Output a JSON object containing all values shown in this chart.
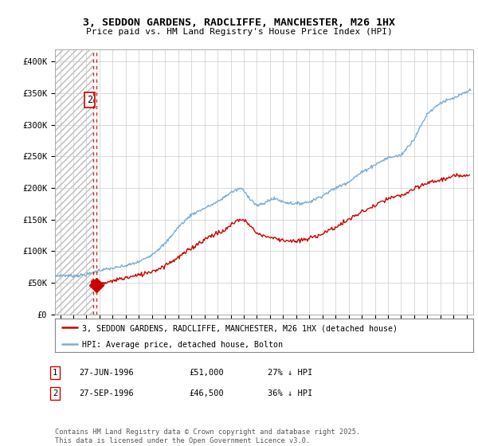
{
  "title": "3, SEDDON GARDENS, RADCLIFFE, MANCHESTER, M26 1HX",
  "subtitle": "Price paid vs. HM Land Registry's House Price Index (HPI)",
  "ylim": [
    0,
    420000
  ],
  "yticks": [
    0,
    50000,
    100000,
    150000,
    200000,
    250000,
    300000,
    350000,
    400000
  ],
  "ytick_labels": [
    "£0",
    "£50K",
    "£100K",
    "£150K",
    "£200K",
    "£250K",
    "£300K",
    "£350K",
    "£400K"
  ],
  "xlim_start": 1993.6,
  "xlim_end": 2025.5,
  "hpi_color": "#7aadd4",
  "price_color": "#cc0000",
  "marker1_date": 1996.49,
  "marker1_price": 51000,
  "marker2_date": 1996.74,
  "marker2_price": 46500,
  "legend_line1": "3, SEDDON GARDENS, RADCLIFFE, MANCHESTER, M26 1HX (detached house)",
  "legend_line2": "HPI: Average price, detached house, Bolton",
  "table_row1": [
    "1",
    "27-JUN-1996",
    "£51,000",
    "27% ↓ HPI"
  ],
  "table_row2": [
    "2",
    "27-SEP-1996",
    "£46,500",
    "36% ↓ HPI"
  ],
  "footer": "Contains HM Land Registry data © Crown copyright and database right 2025.\nThis data is licensed under the Open Government Licence v3.0.",
  "bg_color": "#ffffff",
  "grid_color": "#cccccc",
  "hpi_anchors": [
    [
      1993.6,
      60000
    ],
    [
      1994.0,
      62000
    ],
    [
      1995.0,
      61000
    ],
    [
      1996.0,
      63000
    ],
    [
      1996.5,
      66000
    ],
    [
      1997.0,
      70000
    ],
    [
      1998.0,
      73000
    ],
    [
      1999.0,
      77000
    ],
    [
      2000.0,
      83000
    ],
    [
      2001.0,
      95000
    ],
    [
      2002.0,
      112000
    ],
    [
      2003.0,
      138000
    ],
    [
      2004.0,
      158000
    ],
    [
      2005.0,
      168000
    ],
    [
      2006.0,
      178000
    ],
    [
      2007.0,
      193000
    ],
    [
      2007.8,
      200000
    ],
    [
      2008.5,
      183000
    ],
    [
      2009.0,
      172000
    ],
    [
      2009.5,
      175000
    ],
    [
      2010.0,
      182000
    ],
    [
      2010.5,
      183000
    ],
    [
      2011.0,
      178000
    ],
    [
      2012.0,
      175000
    ],
    [
      2013.0,
      178000
    ],
    [
      2014.0,
      188000
    ],
    [
      2015.0,
      200000
    ],
    [
      2016.0,
      210000
    ],
    [
      2017.0,
      225000
    ],
    [
      2018.0,
      237000
    ],
    [
      2019.0,
      248000
    ],
    [
      2020.0,
      252000
    ],
    [
      2021.0,
      278000
    ],
    [
      2022.0,
      318000
    ],
    [
      2023.0,
      335000
    ],
    [
      2024.0,
      342000
    ],
    [
      2025.0,
      352000
    ],
    [
      2025.3,
      355000
    ]
  ],
  "price_anchors": [
    [
      1996.49,
      51000
    ],
    [
      1996.74,
      46500
    ],
    [
      1997.5,
      50000
    ],
    [
      1998.5,
      56000
    ],
    [
      2000.0,
      62000
    ],
    [
      2001.5,
      72000
    ],
    [
      2003.0,
      90000
    ],
    [
      2004.5,
      112000
    ],
    [
      2005.5,
      125000
    ],
    [
      2006.5,
      132000
    ],
    [
      2007.5,
      150000
    ],
    [
      2008.2,
      148000
    ],
    [
      2009.0,
      128000
    ],
    [
      2010.0,
      122000
    ],
    [
      2011.0,
      118000
    ],
    [
      2012.0,
      115000
    ],
    [
      2013.0,
      120000
    ],
    [
      2014.0,
      128000
    ],
    [
      2015.0,
      138000
    ],
    [
      2016.0,
      150000
    ],
    [
      2017.0,
      162000
    ],
    [
      2018.0,
      172000
    ],
    [
      2019.0,
      183000
    ],
    [
      2020.0,
      188000
    ],
    [
      2021.0,
      198000
    ],
    [
      2022.0,
      208000
    ],
    [
      2023.0,
      213000
    ],
    [
      2024.0,
      218000
    ],
    [
      2025.2,
      222000
    ]
  ]
}
